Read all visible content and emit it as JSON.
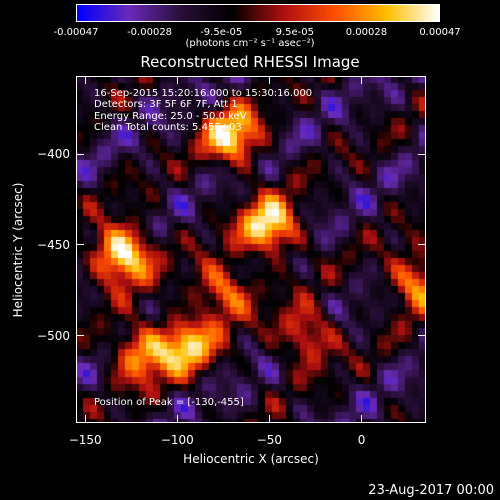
{
  "colorbar": {
    "ticks": [
      "-0.00047",
      "-0.00028",
      "-9.5e-05",
      "9.5e-05",
      "0.00028",
      "0.00047"
    ],
    "tick_values": [
      -0.00047,
      -0.00028,
      -9.5e-05,
      9.5e-05,
      0.00028,
      0.00047
    ],
    "unit_label": "(photons cm⁻² s⁻¹ asec⁻²)",
    "colors": [
      "#0000ff",
      "#6a2bb8",
      "#2a0f3a",
      "#000000",
      "#b01010",
      "#ff5000",
      "#ffc000",
      "#ffffff"
    ]
  },
  "chart_data": {
    "type": "heatmap",
    "title": "Reconstructed RHESSI Image",
    "xlabel": "Heliocentric X (arcsec)",
    "ylabel": "Heliocentric Y (arcsec)",
    "xlim": [
      -155,
      35
    ],
    "ylim": [
      -548,
      -357
    ],
    "xticks": [
      -150,
      -100,
      -50,
      0
    ],
    "yticks": [
      -400,
      -450,
      -500
    ],
    "xtick_labels": [
      "−150",
      "−100",
      "−50",
      "0"
    ],
    "ytick_labels": [
      "−400",
      "−450",
      "−500"
    ],
    "annotations": [
      "16-Sep-2015 15:20:16.000 to 15:30:16.000",
      "Detectors: 3F 5F 6F 7F, Att 1",
      "Energy Range: 25.0 - 50.0 keV",
      "Clean    Total counts: 5.45E+03"
    ],
    "peak_label": "Position of Peak = [-130,-455]",
    "peak_position": [
      -130,
      -455
    ],
    "bright_sources": [
      {
        "x": -130,
        "y": -455,
        "intensity": 0.00047
      },
      {
        "x": -50,
        "y": -440,
        "intensity": 0.0004
      },
      {
        "x": -70,
        "y": -390,
        "intensity": 0.00035
      },
      {
        "x": -95,
        "y": -505,
        "intensity": 0.0003
      },
      {
        "x": -120,
        "y": -510,
        "intensity": 0.00025
      },
      {
        "x": 30,
        "y": -470,
        "intensity": 0.00025
      },
      {
        "x": -75,
        "y": -475,
        "intensity": 0.00022
      },
      {
        "x": -30,
        "y": -500,
        "intensity": 0.00018
      }
    ]
  },
  "date_stamp": "23-Aug-2017 00:00"
}
